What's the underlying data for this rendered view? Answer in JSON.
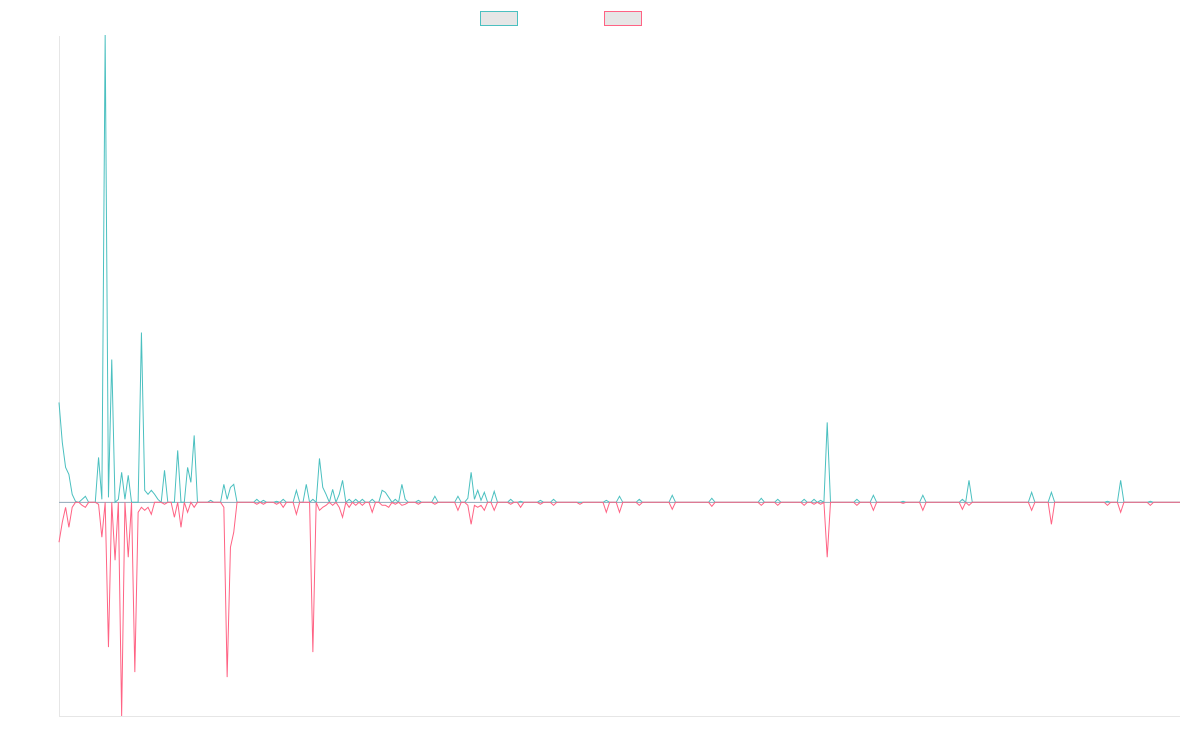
{
  "legend": {
    "position": "top-center",
    "entries": [
      {
        "label": "",
        "stroke": "#4bc0c0",
        "fill": "#e6e6e6"
      },
      {
        "label": "",
        "stroke": "#ff6384",
        "fill": "#e6e6e6"
      }
    ]
  },
  "chart_data": {
    "type": "line",
    "title": "",
    "xlabel": "",
    "ylabel": "",
    "grid": false,
    "x_tick_labels": false,
    "y_tick_labels": false,
    "x": {
      "start": 0,
      "step": 1,
      "count": 341
    },
    "ylim": [
      -214,
      467
    ],
    "baseline": 0,
    "series": [
      {
        "color": "#4bc0c0",
        "default": 0,
        "points": [
          [
            0,
            100
          ],
          [
            1,
            60
          ],
          [
            2,
            35
          ],
          [
            3,
            28
          ],
          [
            4,
            8
          ],
          [
            5,
            1
          ],
          [
            6,
            0
          ],
          [
            7,
            3
          ],
          [
            8,
            6
          ],
          [
            9,
            0
          ],
          [
            10,
            0
          ],
          [
            11,
            0
          ],
          [
            12,
            45
          ],
          [
            13,
            3
          ],
          [
            14,
            468
          ],
          [
            15,
            5
          ],
          [
            16,
            143
          ],
          [
            17,
            0
          ],
          [
            18,
            3
          ],
          [
            19,
            30
          ],
          [
            20,
            3
          ],
          [
            21,
            27
          ],
          [
            22,
            0
          ],
          [
            23,
            0
          ],
          [
            24,
            0
          ],
          [
            25,
            170
          ],
          [
            26,
            12
          ],
          [
            27,
            8
          ],
          [
            28,
            12
          ],
          [
            29,
            8
          ],
          [
            30,
            3
          ],
          [
            31,
            0
          ],
          [
            32,
            32
          ],
          [
            33,
            0
          ],
          [
            34,
            0
          ],
          [
            35,
            0
          ],
          [
            36,
            52
          ],
          [
            37,
            0
          ],
          [
            38,
            0
          ],
          [
            39,
            35
          ],
          [
            40,
            20
          ],
          [
            41,
            67
          ],
          [
            42,
            0
          ],
          [
            43,
            0
          ],
          [
            46,
            2
          ],
          [
            50,
            18
          ],
          [
            51,
            3
          ],
          [
            52,
            15
          ],
          [
            53,
            18
          ],
          [
            55,
            0
          ],
          [
            60,
            3
          ],
          [
            62,
            2
          ],
          [
            66,
            1
          ],
          [
            68,
            3
          ],
          [
            72,
            12
          ],
          [
            75,
            18
          ],
          [
            77,
            3
          ],
          [
            79,
            44
          ],
          [
            80,
            15
          ],
          [
            81,
            8
          ],
          [
            83,
            13
          ],
          [
            85,
            8
          ],
          [
            86,
            22
          ],
          [
            88,
            3
          ],
          [
            90,
            3
          ],
          [
            92,
            3
          ],
          [
            95,
            3
          ],
          [
            98,
            12
          ],
          [
            99,
            10
          ],
          [
            100,
            5
          ],
          [
            102,
            3
          ],
          [
            104,
            18
          ],
          [
            105,
            3
          ],
          [
            109,
            2
          ],
          [
            114,
            6
          ],
          [
            121,
            6
          ],
          [
            124,
            4
          ],
          [
            125,
            30
          ],
          [
            126,
            3
          ],
          [
            127,
            12
          ],
          [
            128,
            2
          ],
          [
            129,
            10
          ],
          [
            132,
            11
          ],
          [
            137,
            3
          ],
          [
            140,
            1
          ],
          [
            146,
            2
          ],
          [
            150,
            3
          ],
          [
            158,
            0
          ],
          [
            166,
            2
          ],
          [
            170,
            6
          ],
          [
            176,
            3
          ],
          [
            186,
            7
          ],
          [
            198,
            4
          ],
          [
            213,
            4
          ],
          [
            218,
            3
          ],
          [
            226,
            3
          ],
          [
            229,
            3
          ],
          [
            231,
            2
          ],
          [
            233,
            80
          ],
          [
            242,
            3
          ],
          [
            247,
            7
          ],
          [
            256,
            1
          ],
          [
            262,
            7
          ],
          [
            274,
            3
          ],
          [
            276,
            22
          ],
          [
            295,
            10
          ],
          [
            301,
            10
          ],
          [
            318,
            1
          ],
          [
            322,
            22
          ],
          [
            331,
            1
          ]
        ]
      },
      {
        "color": "#ff6384",
        "default": 0,
        "points": [
          [
            0,
            -40
          ],
          [
            1,
            -20
          ],
          [
            2,
            -5
          ],
          [
            3,
            -25
          ],
          [
            4,
            -5
          ],
          [
            5,
            0
          ],
          [
            6,
            0
          ],
          [
            7,
            -3
          ],
          [
            8,
            -5
          ],
          [
            9,
            0
          ],
          [
            10,
            0
          ],
          [
            11,
            0
          ],
          [
            12,
            -2
          ],
          [
            13,
            -35
          ],
          [
            14,
            0
          ],
          [
            15,
            -145
          ],
          [
            16,
            0
          ],
          [
            17,
            -58
          ],
          [
            18,
            0
          ],
          [
            19,
            -214
          ],
          [
            20,
            0
          ],
          [
            21,
            -55
          ],
          [
            22,
            0
          ],
          [
            23,
            -170
          ],
          [
            24,
            -10
          ],
          [
            25,
            -5
          ],
          [
            26,
            -8
          ],
          [
            27,
            -5
          ],
          [
            28,
            -12
          ],
          [
            29,
            0
          ],
          [
            30,
            0
          ],
          [
            31,
            0
          ],
          [
            32,
            -2
          ],
          [
            33,
            0
          ],
          [
            34,
            0
          ],
          [
            35,
            -15
          ],
          [
            36,
            0
          ],
          [
            37,
            -25
          ],
          [
            38,
            0
          ],
          [
            39,
            -10
          ],
          [
            40,
            0
          ],
          [
            41,
            -5
          ],
          [
            42,
            0
          ],
          [
            43,
            0
          ],
          [
            46,
            0
          ],
          [
            50,
            -5
          ],
          [
            51,
            -175
          ],
          [
            52,
            -45
          ],
          [
            53,
            -30
          ],
          [
            55,
            0
          ],
          [
            60,
            -2
          ],
          [
            62,
            -2
          ],
          [
            66,
            -2
          ],
          [
            68,
            -5
          ],
          [
            72,
            -12
          ],
          [
            75,
            0
          ],
          [
            77,
            -150
          ],
          [
            79,
            -8
          ],
          [
            80,
            -5
          ],
          [
            81,
            -3
          ],
          [
            83,
            -3
          ],
          [
            85,
            -5
          ],
          [
            86,
            -15
          ],
          [
            88,
            -5
          ],
          [
            90,
            -3
          ],
          [
            92,
            -3
          ],
          [
            95,
            -10
          ],
          [
            98,
            -3
          ],
          [
            99,
            -3
          ],
          [
            100,
            -5
          ],
          [
            102,
            -2
          ],
          [
            104,
            -3
          ],
          [
            105,
            -2
          ],
          [
            109,
            -2
          ],
          [
            114,
            -2
          ],
          [
            121,
            -8
          ],
          [
            124,
            -3
          ],
          [
            125,
            -22
          ],
          [
            126,
            -3
          ],
          [
            127,
            -5
          ],
          [
            128,
            -3
          ],
          [
            129,
            -8
          ],
          [
            132,
            -8
          ],
          [
            137,
            -2
          ],
          [
            140,
            -5
          ],
          [
            146,
            -2
          ],
          [
            150,
            -3
          ],
          [
            158,
            -2
          ],
          [
            166,
            -10
          ],
          [
            170,
            -10
          ],
          [
            176,
            -3
          ],
          [
            186,
            -7
          ],
          [
            198,
            -4
          ],
          [
            213,
            -3
          ],
          [
            218,
            -3
          ],
          [
            226,
            -3
          ],
          [
            229,
            -2
          ],
          [
            231,
            -2
          ],
          [
            233,
            -55
          ],
          [
            242,
            -3
          ],
          [
            247,
            -8
          ],
          [
            256,
            -1
          ],
          [
            262,
            -8
          ],
          [
            274,
            -7
          ],
          [
            276,
            -3
          ],
          [
            295,
            -8
          ],
          [
            301,
            -22
          ],
          [
            318,
            -3
          ],
          [
            322,
            -10
          ],
          [
            331,
            -3
          ]
        ]
      }
    ]
  }
}
